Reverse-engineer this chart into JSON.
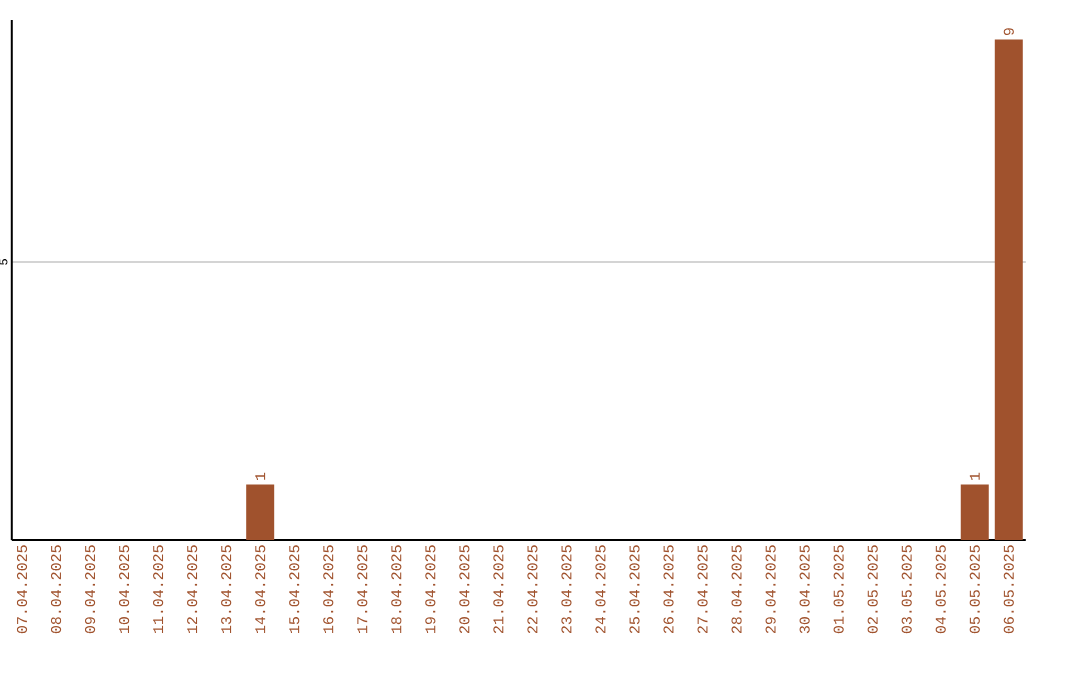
{
  "chart_data": {
    "type": "bar",
    "categories": [
      "07.04.2025",
      "08.04.2025",
      "09.04.2025",
      "10.04.2025",
      "11.04.2025",
      "12.04.2025",
      "13.04.2025",
      "14.04.2025",
      "15.04.2025",
      "16.04.2025",
      "17.04.2025",
      "18.04.2025",
      "19.04.2025",
      "20.04.2025",
      "21.04.2025",
      "22.04.2025",
      "23.04.2025",
      "24.04.2025",
      "25.04.2025",
      "26.04.2025",
      "27.04.2025",
      "28.04.2025",
      "29.04.2025",
      "30.04.2025",
      "01.05.2025",
      "02.05.2025",
      "03.05.2025",
      "04.05.2025",
      "05.05.2025",
      "06.05.2025"
    ],
    "values": [
      0,
      0,
      0,
      0,
      0,
      0,
      0,
      1,
      0,
      0,
      0,
      0,
      0,
      0,
      0,
      0,
      0,
      0,
      0,
      0,
      0,
      0,
      0,
      0,
      0,
      0,
      0,
      0,
      1,
      9
    ],
    "value_labels": [
      null,
      null,
      null,
      null,
      null,
      null,
      null,
      "1",
      null,
      null,
      null,
      null,
      null,
      null,
      null,
      null,
      null,
      null,
      null,
      null,
      null,
      null,
      null,
      null,
      null,
      null,
      null,
      null,
      "1",
      "9"
    ],
    "color": "#a0522d",
    "ylim": [
      0,
      9.35
    ],
    "yticks": [
      5
    ],
    "grid": "y"
  }
}
